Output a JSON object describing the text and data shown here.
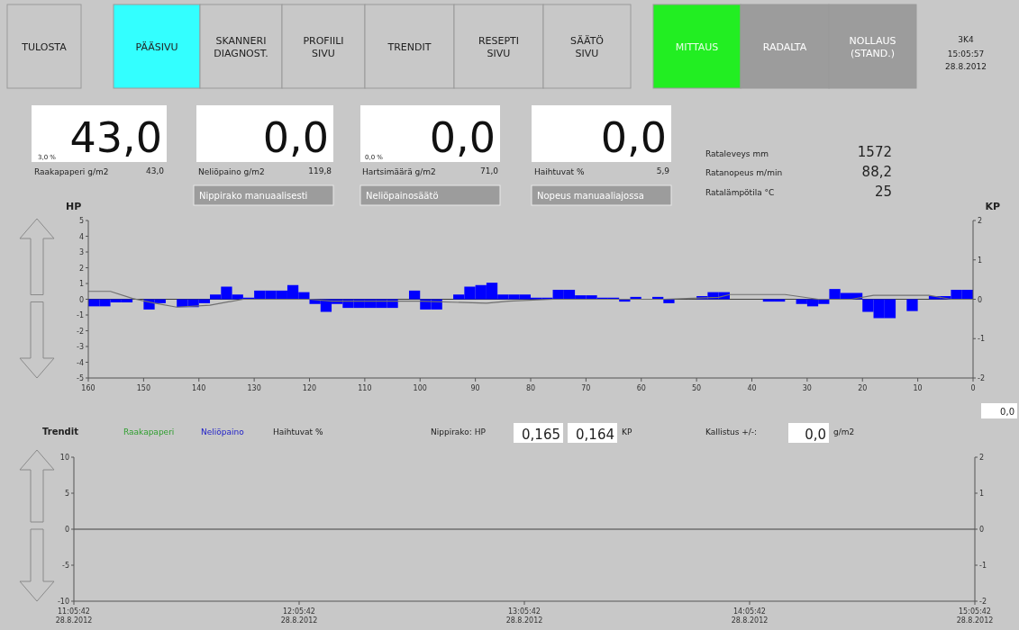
{
  "chart_data": [
    {
      "type": "other",
      "annotations": [
        "TULOSTA",
        "PÄÄSIVU",
        "SKANNERI DIAGNOST.",
        "PROFIILI SIVU",
        "TRENDIT",
        "RESEPTI SIVU",
        "SÄÄTÖ SIVU",
        "MITTAUS",
        "RADALTA",
        "NOLLAUS (STAND.)",
        "3K4",
        "15:05:57",
        "28.8.2012",
        "43,0",
        "3,0 %",
        "Raakapaperi g/m2",
        "43,0",
        "0,0",
        "Neliöpaino g/m2",
        "119,8",
        "Nippirako manuaalisesti",
        "0,0",
        "0,0 %",
        "Hartsimäärä g/m2",
        "71,0",
        "Neliöpainosäätö",
        "0,0",
        "Haihtuvat %",
        "5,9",
        "Nopeus manuaaliajossa",
        "Rataleveys mm",
        "1572",
        "Ratanopeus m/min",
        "88,2",
        "Ratalämpötila °C",
        "25"
      ]
    },
    {
      "type": "bar",
      "ylabel": "HP",
      "y2label": "KP",
      "xlim": [
        160,
        0
      ],
      "xticks": [
        160,
        150,
        140,
        130,
        120,
        110,
        100,
        90,
        80,
        70,
        60,
        50,
        40,
        30,
        20,
        10,
        0
      ],
      "ylim": [
        -5,
        5
      ],
      "yticks": [
        5,
        4,
        3,
        2,
        1,
        0,
        -1,
        -2,
        -3,
        -4,
        -5
      ],
      "y2lim": [
        -2,
        2
      ],
      "y2ticks": [
        2,
        1,
        0,
        -1,
        -2
      ],
      "series": [
        {
          "type": "bar",
          "color": "#0000ff",
          "x": [
            159,
            157,
            155,
            153,
            151,
            149,
            147,
            145,
            143,
            141,
            139,
            137,
            135,
            133,
            131,
            129,
            127,
            125,
            123,
            121,
            119,
            117,
            115,
            113,
            111,
            109,
            107,
            105,
            103,
            101,
            99,
            97,
            95,
            93,
            91,
            89,
            87,
            85,
            83,
            81,
            79,
            77,
            75,
            73,
            71,
            69,
            67,
            65,
            63,
            61,
            59,
            57,
            55,
            53,
            51,
            49,
            47,
            45,
            43,
            41,
            39,
            37,
            35,
            33,
            31,
            29,
            27,
            25,
            23,
            21,
            19,
            17,
            15,
            13,
            11,
            9,
            7,
            5,
            3,
            1
          ],
          "values": [
            -0.45,
            -0.45,
            -0.2,
            -0.2,
            0,
            -0.65,
            -0.25,
            0,
            -0.5,
            -0.5,
            -0.25,
            0.3,
            0.8,
            0.3,
            0.1,
            0.55,
            0.55,
            0.55,
            0.9,
            0.45,
            -0.3,
            -0.8,
            -0.3,
            -0.55,
            -0.55,
            -0.55,
            -0.55,
            -0.55,
            0,
            0.55,
            -0.65,
            -0.65,
            0,
            0.3,
            0.8,
            0.9,
            1.05,
            0.3,
            0.3,
            0.3,
            0.1,
            0.1,
            0.6,
            0.6,
            0.25,
            0.25,
            0.1,
            0.1,
            -0.15,
            0.15,
            0,
            0.15,
            -0.25,
            0,
            0,
            0.2,
            0.45,
            0.45,
            0,
            0,
            0,
            -0.15,
            -0.15,
            0,
            -0.3,
            -0.45,
            -0.3,
            0.65,
            0.4,
            0.4,
            -0.8,
            -1.2,
            -1.2,
            0,
            -0.75,
            0,
            0.2,
            0.2,
            0.6,
            0.6
          ]
        },
        {
          "type": "line",
          "axis": "y2",
          "color": "#707070",
          "x": [
            160,
            156,
            152,
            148,
            144,
            138,
            132,
            120,
            116,
            100,
            88,
            84,
            76,
            64,
            56,
            46,
            44,
            34,
            28,
            22,
            18,
            8,
            4,
            0
          ],
          "values": [
            0.2,
            0.2,
            0.02,
            -0.1,
            -0.2,
            -0.15,
            0,
            0,
            -0.05,
            -0.05,
            -0.1,
            -0.05,
            0,
            0,
            0,
            0.05,
            0.12,
            0.12,
            0,
            0,
            0.1,
            0.1,
            0,
            0
          ]
        }
      ],
      "ref_lines": [
        {
          "axis": "y",
          "value": 0,
          "color": "#404040"
        }
      ],
      "annotations": [
        "0,0"
      ]
    },
    {
      "type": "line",
      "legend_title": "Trendit",
      "categories": [
        "11:05:42 28.8.2012",
        "12:05:42 28.8.2012",
        "13:05:42 28.8.2012",
        "14:05:42 28.8.2012",
        "15:05:42 28.8.2012"
      ],
      "ylim": [
        -10,
        10
      ],
      "yticks": [
        10,
        5,
        0,
        -5,
        -10
      ],
      "y2lim": [
        -2,
        2
      ],
      "y2ticks": [
        2,
        1,
        0,
        -1,
        -2
      ],
      "series": [
        {
          "name": "Raakapaperi",
          "color": "#2e9e2e",
          "values": [
            null,
            null,
            null,
            null,
            null
          ]
        },
        {
          "name": "Neliöpaino",
          "color": "#2020c8",
          "values": [
            null,
            null,
            null,
            null,
            null
          ]
        },
        {
          "name": "Haihtuvat %",
          "color": "#202020",
          "values": [
            null,
            null,
            null,
            null,
            null
          ]
        }
      ],
      "ref_lines": [
        {
          "axis": "y",
          "value": 0,
          "color": "#404040"
        }
      ],
      "annotations": [
        "Nippirako:  HP",
        "0,165",
        "0,164",
        "KP",
        "Kallistus +/-:",
        "0,0",
        "g/m2"
      ]
    }
  ]
}
